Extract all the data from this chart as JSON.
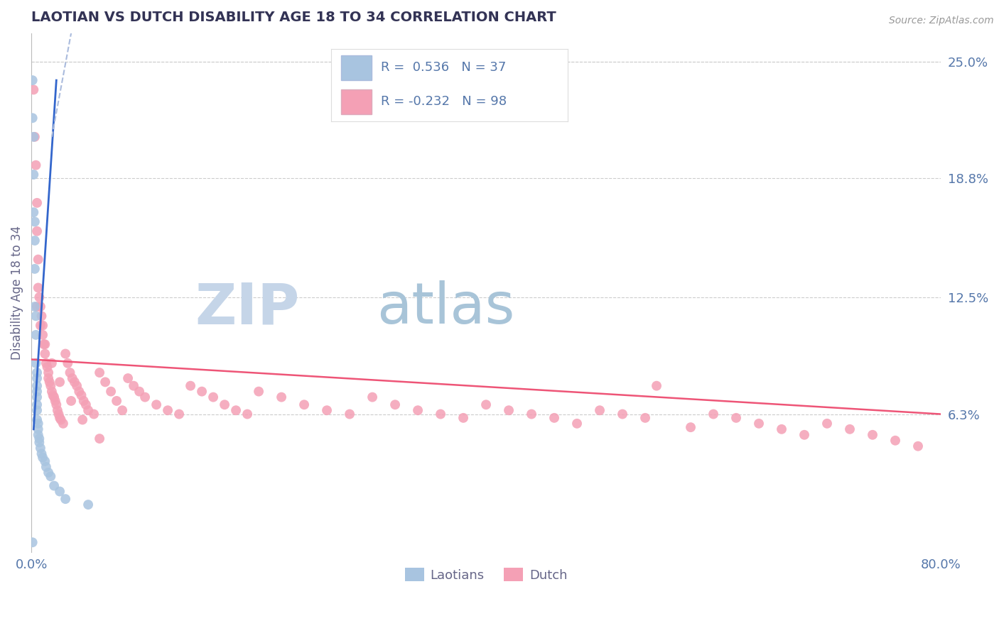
{
  "title": "LAOTIAN VS DUTCH DISABILITY AGE 18 TO 34 CORRELATION CHART",
  "source": "Source: ZipAtlas.com",
  "ylabel": "Disability Age 18 to 34",
  "x_min": 0.0,
  "x_max": 0.8,
  "y_min": -0.01,
  "y_max": 0.265,
  "ytick_vals": [
    0.063,
    0.125,
    0.188,
    0.25
  ],
  "ytick_labels": [
    "6.3%",
    "12.5%",
    "18.8%",
    "25.0%"
  ],
  "xtick_vals": [
    0.0,
    0.8
  ],
  "xtick_labels": [
    "0.0%",
    "80.0%"
  ],
  "laotian_color": "#a8c4e0",
  "dutch_color": "#f4a0b5",
  "laotian_line_color": "#3366cc",
  "laotian_line_dash_color": "#aabbdd",
  "dutch_line_color": "#ee5577",
  "legend_r_laotian": "0.536",
  "legend_n_laotian": "37",
  "legend_r_dutch": "-0.232",
  "legend_n_dutch": "98",
  "grid_color": "#cccccc",
  "watermark_zip": "ZIP",
  "watermark_atlas": "atlas",
  "watermark_color_zip": "#c5d5e8",
  "watermark_color_atlas": "#a8c4d8",
  "title_color": "#333355",
  "axis_label_color": "#666688",
  "tick_color": "#5577aa",
  "background_color": "#ffffff",
  "laotian_x": [
    0.001,
    0.001,
    0.002,
    0.002,
    0.002,
    0.003,
    0.003,
    0.003,
    0.003,
    0.004,
    0.004,
    0.004,
    0.005,
    0.005,
    0.005,
    0.005,
    0.005,
    0.005,
    0.005,
    0.005,
    0.006,
    0.006,
    0.006,
    0.007,
    0.007,
    0.008,
    0.009,
    0.01,
    0.012,
    0.013,
    0.015,
    0.017,
    0.02,
    0.025,
    0.03,
    0.05,
    0.001
  ],
  "laotian_y": [
    0.24,
    0.22,
    0.21,
    0.19,
    0.17,
    0.165,
    0.155,
    0.14,
    0.12,
    0.115,
    0.105,
    0.09,
    0.085,
    0.082,
    0.078,
    0.075,
    0.072,
    0.068,
    0.065,
    0.06,
    0.058,
    0.055,
    0.052,
    0.05,
    0.048,
    0.045,
    0.042,
    0.04,
    0.038,
    0.035,
    0.032,
    0.03,
    0.025,
    0.022,
    0.018,
    0.015,
    -0.005
  ],
  "dutch_x": [
    0.002,
    0.003,
    0.004,
    0.005,
    0.005,
    0.006,
    0.006,
    0.007,
    0.008,
    0.009,
    0.01,
    0.01,
    0.011,
    0.012,
    0.013,
    0.014,
    0.015,
    0.015,
    0.016,
    0.017,
    0.018,
    0.019,
    0.02,
    0.021,
    0.022,
    0.023,
    0.024,
    0.025,
    0.026,
    0.028,
    0.03,
    0.032,
    0.034,
    0.036,
    0.038,
    0.04,
    0.042,
    0.044,
    0.046,
    0.048,
    0.05,
    0.055,
    0.06,
    0.065,
    0.07,
    0.075,
    0.08,
    0.085,
    0.09,
    0.095,
    0.1,
    0.11,
    0.12,
    0.13,
    0.14,
    0.15,
    0.16,
    0.17,
    0.18,
    0.19,
    0.2,
    0.22,
    0.24,
    0.26,
    0.28,
    0.3,
    0.32,
    0.34,
    0.36,
    0.38,
    0.4,
    0.42,
    0.44,
    0.46,
    0.48,
    0.5,
    0.52,
    0.54,
    0.55,
    0.58,
    0.6,
    0.62,
    0.64,
    0.66,
    0.68,
    0.7,
    0.72,
    0.74,
    0.76,
    0.78,
    0.005,
    0.008,
    0.012,
    0.018,
    0.025,
    0.035,
    0.045,
    0.06
  ],
  "dutch_y": [
    0.235,
    0.21,
    0.195,
    0.175,
    0.16,
    0.145,
    0.13,
    0.125,
    0.12,
    0.115,
    0.11,
    0.105,
    0.1,
    0.095,
    0.09,
    0.088,
    0.085,
    0.082,
    0.08,
    0.078,
    0.075,
    0.073,
    0.072,
    0.07,
    0.068,
    0.065,
    0.063,
    0.061,
    0.06,
    0.058,
    0.095,
    0.09,
    0.085,
    0.082,
    0.08,
    0.078,
    0.075,
    0.073,
    0.07,
    0.068,
    0.065,
    0.063,
    0.085,
    0.08,
    0.075,
    0.07,
    0.065,
    0.082,
    0.078,
    0.075,
    0.072,
    0.068,
    0.065,
    0.063,
    0.078,
    0.075,
    0.072,
    0.068,
    0.065,
    0.063,
    0.075,
    0.072,
    0.068,
    0.065,
    0.063,
    0.072,
    0.068,
    0.065,
    0.063,
    0.061,
    0.068,
    0.065,
    0.063,
    0.061,
    0.058,
    0.065,
    0.063,
    0.061,
    0.078,
    0.056,
    0.063,
    0.061,
    0.058,
    0.055,
    0.052,
    0.058,
    0.055,
    0.052,
    0.049,
    0.046,
    0.12,
    0.11,
    0.1,
    0.09,
    0.08,
    0.07,
    0.06,
    0.05
  ]
}
